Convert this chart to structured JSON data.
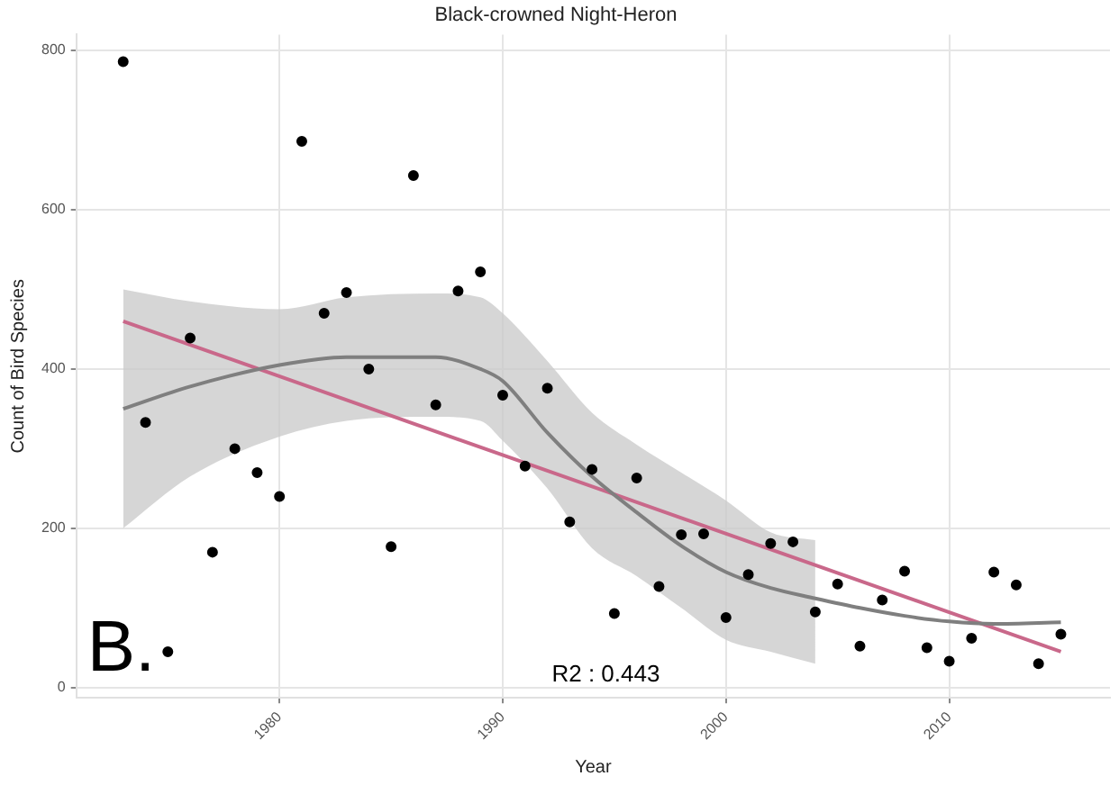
{
  "chart_data": {
    "type": "scatter",
    "title": "Black-crowned Night-Heron",
    "xlabel": "Year",
    "ylabel": "Count of Bird Species",
    "xlim": [
      1970.9,
      2017.2
    ],
    "xticks": [
      1980,
      1990,
      2000,
      2010
    ],
    "ylim": [
      -13,
      820
    ],
    "yticks": [
      0,
      200,
      400,
      600,
      800
    ],
    "grid": true,
    "legend": false,
    "annotations": [
      "B.",
      "R2 : 0.443"
    ],
    "series": [
      {
        "color": "#000000",
        "marker": "circle",
        "x": [
          1973,
          1974,
          1975,
          1976,
          1977,
          1978,
          1979,
          1980,
          1981,
          1982,
          1983,
          1984,
          1985,
          1986,
          1987,
          1988,
          1989,
          1990,
          1991,
          1992,
          1993,
          1994,
          1995,
          1996,
          1997,
          1998,
          1999,
          2000,
          2001,
          2002,
          2003,
          2004,
          2005,
          2006,
          2007,
          2008,
          2009,
          2010,
          2011,
          2012,
          2013,
          2014,
          2015
        ],
        "values": [
          786,
          333,
          45,
          439,
          170,
          300,
          270,
          240,
          686,
          470,
          496,
          400,
          177,
          643,
          355,
          498,
          522,
          367,
          278,
          376,
          208,
          274,
          93,
          263,
          127,
          192,
          193,
          88,
          142,
          181,
          183,
          95,
          130,
          52,
          110,
          146,
          50,
          33,
          62,
          145,
          129,
          30,
          67
        ]
      },
      {
        "type": "line",
        "color": "#7f7f7f",
        "marker": "none",
        "x": [
          1973,
          1976,
          1980,
          1983,
          1987,
          1989,
          1990,
          1992,
          1994,
          1996,
          1998,
          2000,
          2002,
          2004,
          2006,
          2008,
          2010,
          2012,
          2015
        ],
        "values": [
          350,
          378,
          405,
          415,
          415,
          400,
          385,
          320,
          265,
          220,
          178,
          145,
          125,
          112,
          100,
          90,
          83,
          80,
          82
        ],
        "lower": [
          200,
          265,
          315,
          335,
          340,
          335,
          310,
          250,
          175,
          140,
          100,
          60,
          45,
          30,
          null,
          null,
          null,
          null,
          null
        ],
        "upper": [
          500,
          485,
          475,
          490,
          495,
          490,
          470,
          410,
          345,
          305,
          270,
          235,
          195,
          185,
          null,
          null,
          null,
          null,
          null
        ]
      },
      {
        "type": "line",
        "color": "#c9688a",
        "marker": "none",
        "x": [
          1973,
          2015
        ],
        "values": [
          460,
          45
        ]
      }
    ]
  }
}
